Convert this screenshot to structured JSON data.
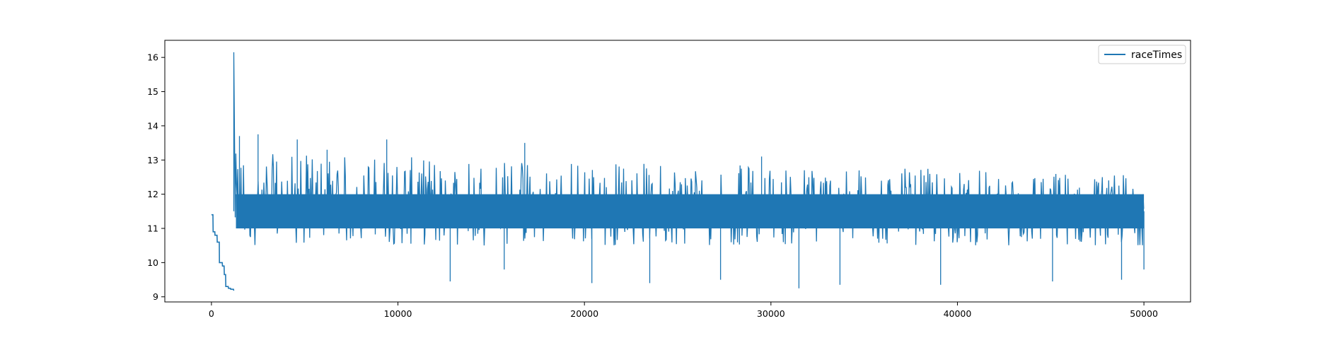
{
  "chart_data": {
    "type": "line",
    "title": "",
    "xlabel": "",
    "ylabel": "",
    "xlim": [
      -2500,
      52500
    ],
    "ylim": [
      8.85,
      16.5
    ],
    "x_ticks": [
      0,
      10000,
      20000,
      30000,
      40000,
      50000
    ],
    "x_tick_labels": [
      "0",
      "10000",
      "20000",
      "30000",
      "40000",
      "50000"
    ],
    "y_ticks": [
      9,
      10,
      11,
      12,
      13,
      14,
      15,
      16
    ],
    "y_tick_labels": [
      "9",
      "10",
      "11",
      "12",
      "13",
      "14",
      "15",
      "16"
    ],
    "grid": false,
    "legend_position": "top-right",
    "series": [
      {
        "name": "raceTimes",
        "color": "#1f77b4",
        "x": [
          0,
          80,
          90,
          180,
          190,
          300,
          310,
          420,
          430,
          580,
          590,
          680,
          690,
          760,
          770,
          900,
          910,
          1020,
          1030,
          1180,
          1200
        ],
        "values": [
          11.4,
          11.4,
          10.9,
          10.9,
          10.8,
          10.8,
          10.6,
          10.6,
          10.0,
          10.0,
          9.9,
          9.9,
          9.65,
          9.65,
          9.3,
          9.3,
          9.25,
          9.25,
          9.22,
          9.22,
          9.18
        ],
        "noisy_segment": {
          "x_start": 1200,
          "x_end": 50000,
          "samples": [
            [
              1200,
              16.15
            ],
            [
              1500,
              13.7
            ],
            [
              2500,
              13.75
            ],
            [
              4600,
              13.6
            ],
            [
              6200,
              13.3
            ],
            [
              9400,
              13.6
            ],
            [
              12800,
              9.45
            ],
            [
              15700,
              9.8
            ],
            [
              16800,
              13.5
            ],
            [
              20400,
              9.4
            ],
            [
              23500,
              9.4
            ],
            [
              27300,
              9.5
            ],
            [
              29500,
              13.1
            ],
            [
              31500,
              9.25
            ],
            [
              33700,
              9.35
            ],
            [
              39100,
              9.35
            ],
            [
              45100,
              9.45
            ],
            [
              48800,
              9.5
            ],
            [
              50000,
              9.8
            ]
          ],
          "band_upper_start": 13.2,
          "band_upper_end": 12.6,
          "band_lower_start": 10.5,
          "band_lower_end": 10.5,
          "core_upper": 12.0,
          "core_lower": 11.0
        }
      }
    ]
  }
}
